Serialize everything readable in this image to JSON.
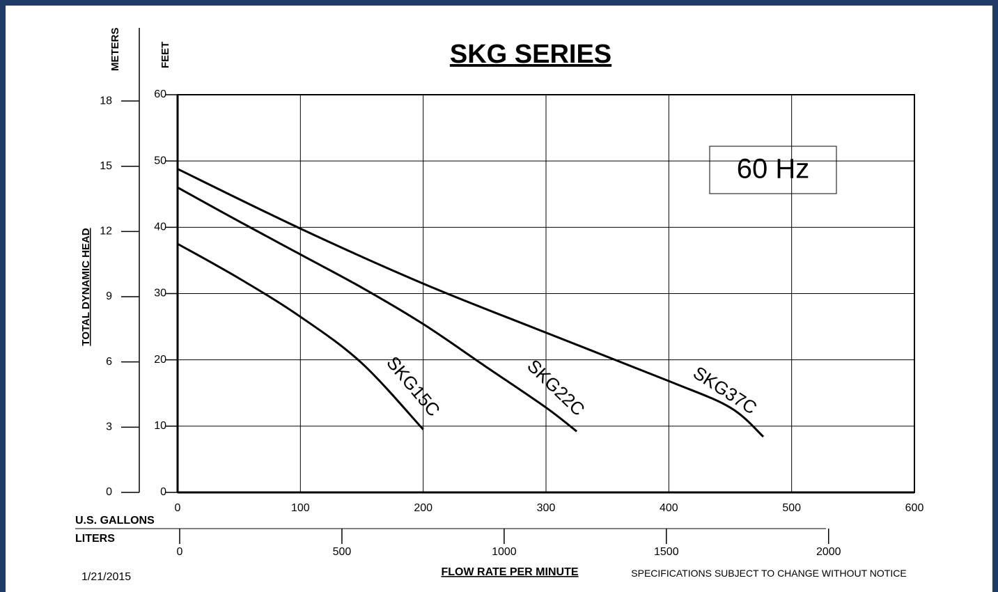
{
  "chart_data": {
    "type": "line",
    "title": "SKG SERIES",
    "annotation": "60 Hz",
    "ylabel": "FEET",
    "y2label": "METERS",
    "ylabel_main": "TOTAL DYNAMIC HEAD",
    "xlabel": "U.S. GALLONS",
    "x2label": "LITERS",
    "xlabel_main": "FLOW RATE PER MINUTE",
    "date": "1/21/2015",
    "footnote": "SPECIFICATIONS SUBJECT TO CHANGE WITHOUT NOTICE",
    "xlim": [
      0,
      600
    ],
    "xticks": [
      0,
      100,
      200,
      300,
      400,
      500,
      600
    ],
    "ylim": [
      0,
      60
    ],
    "yticks": [
      0,
      10,
      20,
      30,
      40,
      50,
      60
    ],
    "y2lim": [
      0,
      18.29
    ],
    "y2ticks": [
      0,
      3,
      6,
      9,
      12,
      15,
      18
    ],
    "x2lim": [
      0,
      2271
    ],
    "x2ticks": [
      0,
      500,
      1000,
      1500,
      2000
    ],
    "grid": true,
    "series": [
      {
        "name": "SKG15C",
        "color": "#000000",
        "x": [
          0,
          50,
          100,
          150,
          200
        ],
        "values": [
          37.5,
          32.3,
          26.5,
          19.5,
          9.5
        ]
      },
      {
        "name": "SKG22C",
        "color": "#000000",
        "x": [
          0,
          50,
          100,
          150,
          200,
          250,
          300,
          325
        ],
        "values": [
          46,
          40.9,
          35.9,
          30.9,
          25.4,
          19.1,
          12.8,
          9.2
        ]
      },
      {
        "name": "SKG37C",
        "color": "#000000",
        "x": [
          0,
          100,
          200,
          300,
          400,
          450,
          477
        ],
        "values": [
          48.8,
          39.8,
          31.5,
          24.1,
          16.8,
          12.8,
          8.4
        ]
      }
    ]
  }
}
